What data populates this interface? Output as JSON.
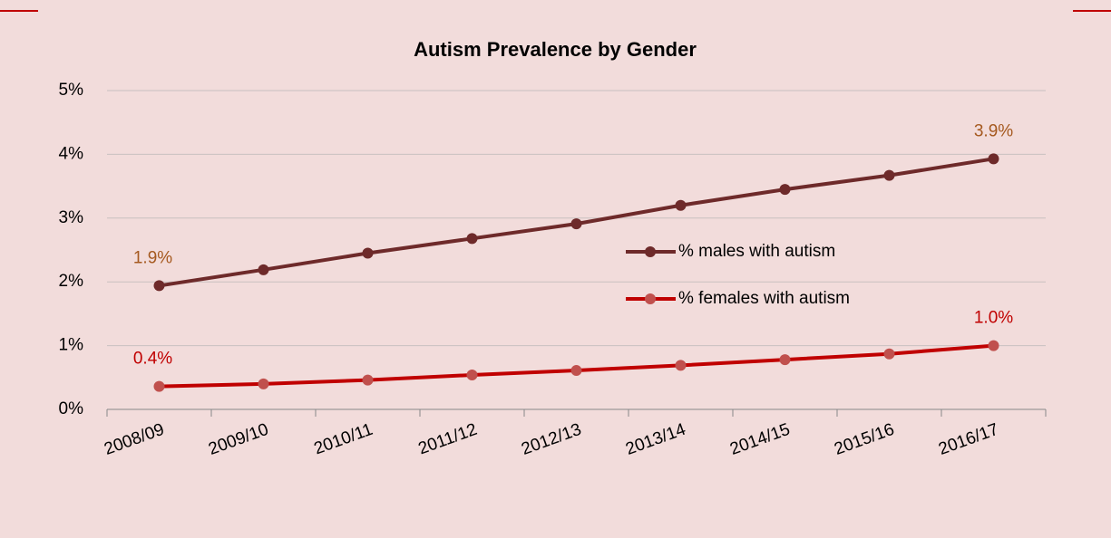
{
  "chart_data": {
    "type": "line",
    "title": "Autism Prevalence by Gender",
    "categories": [
      "2008/09",
      "2009/10",
      "2010/11",
      "2011/12",
      "2012/13",
      "2013/14",
      "2014/15",
      "2015/16",
      "2016/17"
    ],
    "series": [
      {
        "name": "% males with autism",
        "color": "#6e2a2a",
        "marker_color": "#6e2a2a",
        "label_color": "#a5591f",
        "values": [
          1.94,
          2.19,
          2.45,
          2.68,
          2.91,
          3.2,
          3.45,
          3.67,
          3.93
        ],
        "value_labels": [
          "1.9%",
          null,
          null,
          null,
          null,
          null,
          null,
          null,
          "3.9%"
        ]
      },
      {
        "name": "% females with autism",
        "color": "#c00000",
        "marker_color": "#c0504d",
        "label_color": "#c00000",
        "values": [
          0.36,
          0.4,
          0.46,
          0.54,
          0.61,
          0.69,
          0.78,
          0.87,
          1.0
        ],
        "value_labels": [
          "0.4%",
          null,
          null,
          null,
          null,
          null,
          null,
          null,
          "1.0%"
        ]
      }
    ],
    "ylim": [
      0,
      5
    ],
    "yticks": [
      {
        "value": 0,
        "label": "0%"
      },
      {
        "value": 1,
        "label": "1%"
      },
      {
        "value": 2,
        "label": "2%"
      },
      {
        "value": 3,
        "label": "3%"
      },
      {
        "value": 4,
        "label": "4%"
      },
      {
        "value": 5,
        "label": "5%"
      }
    ],
    "grid": true
  }
}
